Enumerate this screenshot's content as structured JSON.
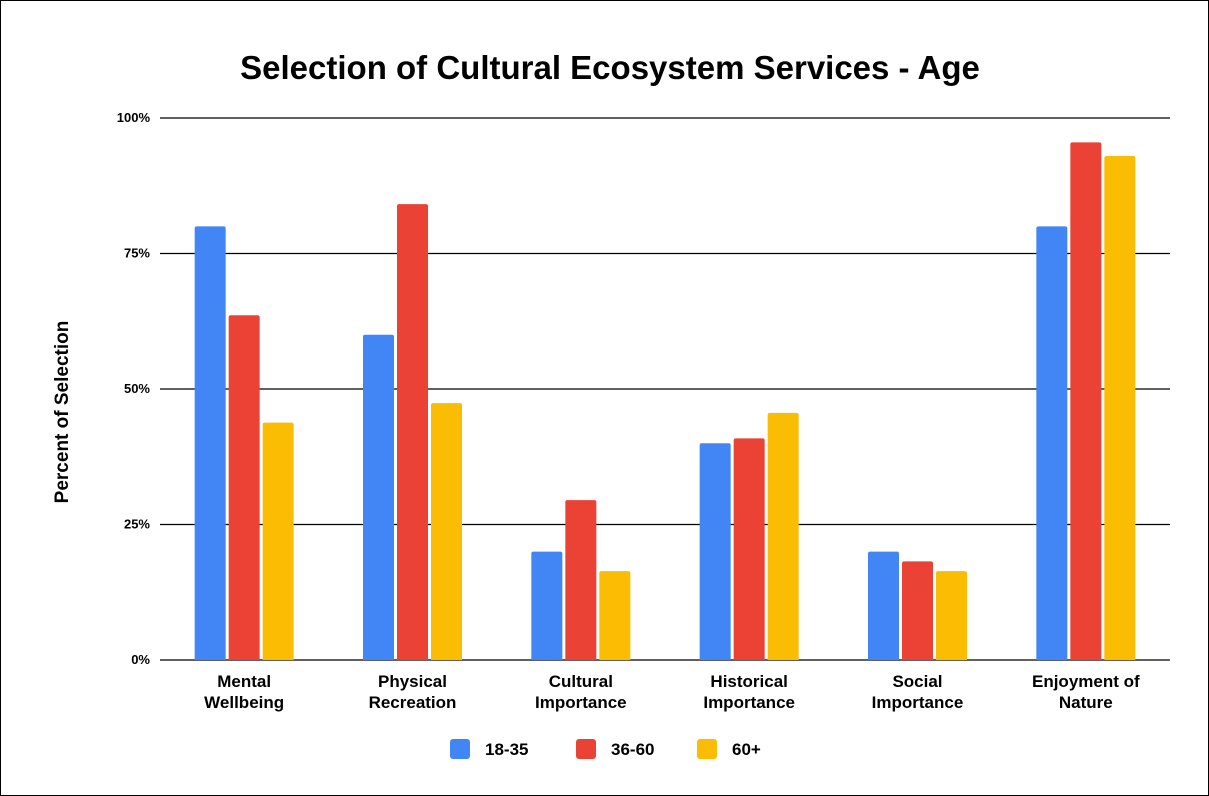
{
  "chart_data": {
    "type": "bar",
    "title": "Selection of Cultural Ecosystem Services - Age",
    "xlabel": "",
    "ylabel": "Percent of Selection",
    "ylim": [
      0,
      100
    ],
    "yticks": [
      {
        "value": 0,
        "label": "0%"
      },
      {
        "value": 25,
        "label": "25%"
      },
      {
        "value": 50,
        "label": "50%"
      },
      {
        "value": 75,
        "label": "75%"
      },
      {
        "value": 100,
        "label": "100%"
      }
    ],
    "grid": true,
    "legend_position": "bottom",
    "categories": [
      [
        "Mental",
        "Wellbeing"
      ],
      [
        "Physical",
        "Recreation"
      ],
      [
        "Cultural",
        "Importance"
      ],
      [
        "Historical",
        "Importance"
      ],
      [
        "Social",
        "Importance"
      ],
      [
        "Enjoyment of",
        "Nature"
      ]
    ],
    "series": [
      {
        "name": "18-35",
        "color": "#4285f4",
        "values": [
          80,
          60,
          20,
          40,
          20,
          80
        ]
      },
      {
        "name": "36-60",
        "color": "#ea4335",
        "values": [
          63.6,
          84.1,
          29.5,
          40.9,
          18.2,
          95.5
        ]
      },
      {
        "name": "60+",
        "color": "#fbbc04",
        "values": [
          43.8,
          47.4,
          16.4,
          45.6,
          16.4,
          93.0
        ]
      }
    ]
  }
}
